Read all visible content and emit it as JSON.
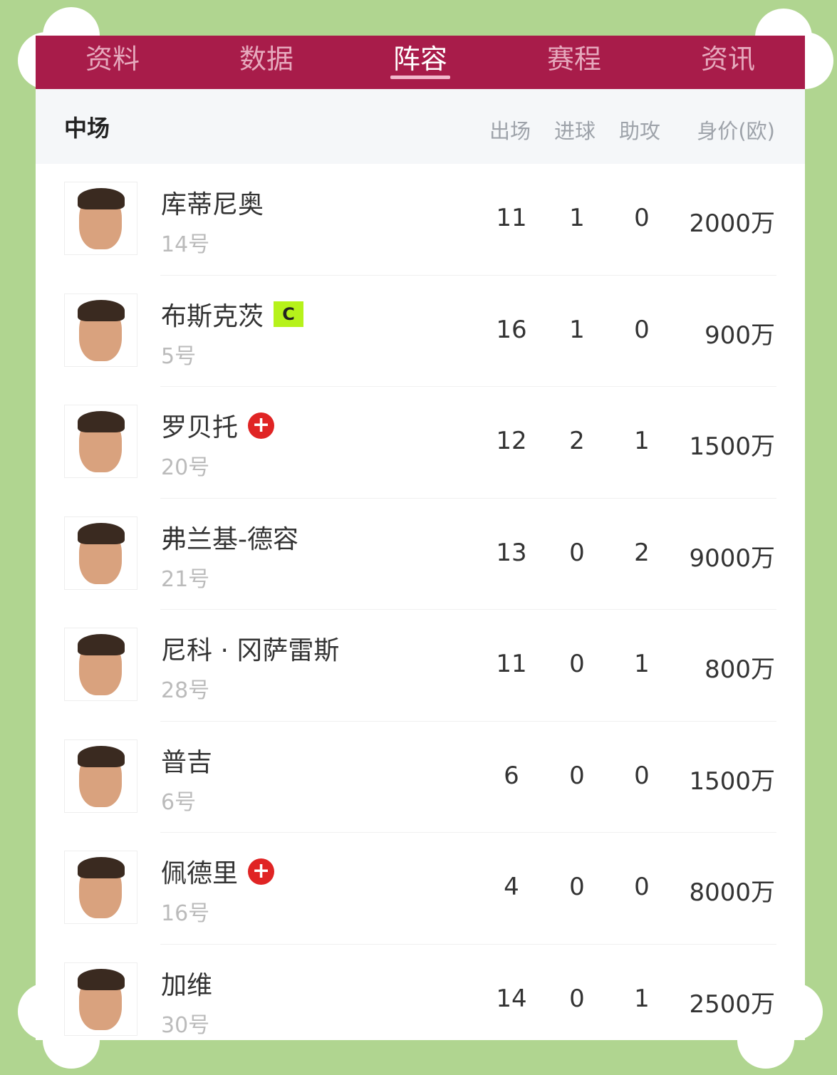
{
  "tabs": [
    "资料",
    "数据",
    "阵容",
    "赛程",
    "资讯"
  ],
  "active_tab": 2,
  "section": "中场",
  "columns": {
    "apps": "出场",
    "goals": "进球",
    "assists": "助攻",
    "value": "身价(欧)"
  },
  "players": [
    {
      "name": "库蒂尼奥",
      "number": "14号",
      "apps": "11",
      "goals": "1",
      "assists": "0",
      "value": "2000万",
      "badge": ""
    },
    {
      "name": "布斯克茨",
      "number": "5号",
      "apps": "16",
      "goals": "1",
      "assists": "0",
      "value": "900万",
      "badge": "C"
    },
    {
      "name": "罗贝托",
      "number": "20号",
      "apps": "12",
      "goals": "2",
      "assists": "1",
      "value": "1500万",
      "badge": "injury"
    },
    {
      "name": "弗兰基-德容",
      "number": "21号",
      "apps": "13",
      "goals": "0",
      "assists": "2",
      "value": "9000万",
      "badge": ""
    },
    {
      "name": "尼科 · 冈萨雷斯",
      "number": "28号",
      "apps": "11",
      "goals": "0",
      "assists": "1",
      "value": "800万",
      "badge": ""
    },
    {
      "name": "普吉",
      "number": "6号",
      "apps": "6",
      "goals": "0",
      "assists": "0",
      "value": "1500万",
      "badge": ""
    },
    {
      "name": "佩德里",
      "number": "16号",
      "apps": "4",
      "goals": "0",
      "assists": "0",
      "value": "8000万",
      "badge": "injury"
    },
    {
      "name": "加维",
      "number": "30号",
      "apps": "14",
      "goals": "0",
      "assists": "1",
      "value": "2500万",
      "badge": ""
    }
  ],
  "colors": {
    "tab_bar": "#a81c4a",
    "captain_badge": "#b6f21b",
    "injury": "#e02424",
    "background": "#b0d590"
  }
}
